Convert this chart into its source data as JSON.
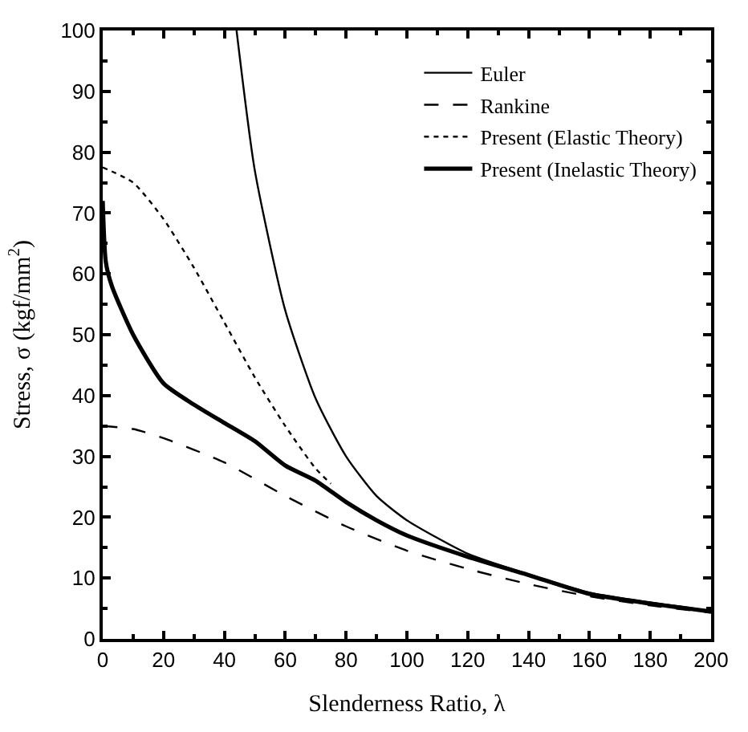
{
  "chart_data": {
    "type": "line",
    "xlabel": "Slenderness Ratio, λ",
    "ylabel": "Stress, σ (kgf/mm$^{2}$)",
    "xlim": [
      0,
      200
    ],
    "xticks": [
      0,
      20,
      40,
      60,
      80,
      100,
      120,
      140,
      160,
      180,
      200
    ],
    "ylim": [
      0,
      100
    ],
    "yticks": [
      0,
      10,
      20,
      30,
      40,
      50,
      60,
      70,
      80,
      90,
      100
    ],
    "legend": "top right",
    "marker": "none",
    "series": [
      {
        "name": "Euler",
        "color": "#000000",
        "line_style": "solid",
        "x": [
          44,
          50,
          60,
          70,
          80,
          90,
          100,
          120,
          140,
          160,
          180,
          200
        ],
        "values": [
          100,
          77,
          54,
          39.5,
          30,
          23.5,
          19.5,
          14,
          10.6,
          7.6,
          6,
          4.6
        ]
      },
      {
        "name": "Rankine",
        "color": "#000000",
        "line_style": "dashed",
        "x": [
          0,
          10,
          20,
          40,
          60,
          80,
          100,
          120,
          140,
          160,
          180,
          200
        ],
        "values": [
          35,
          34.5,
          33,
          29,
          23.5,
          18.5,
          14.5,
          11.5,
          9,
          7,
          5.5,
          4.3
        ]
      },
      {
        "name": "Present (Elastic Theory)",
        "color": "#000000",
        "line_style": "dotted",
        "x": [
          0,
          10,
          20,
          30,
          40,
          50,
          60,
          70,
          75
        ],
        "values": [
          77.5,
          75,
          69,
          61,
          52,
          43,
          35,
          28,
          25.5
        ]
      },
      {
        "name": "Present (Inelastic Theory)",
        "color": "#000000",
        "line_style": "solid",
        "x": [
          0,
          1,
          3,
          10,
          20,
          30,
          40,
          50,
          60,
          70,
          80,
          90,
          100,
          120,
          140,
          160,
          180,
          200
        ],
        "values": [
          72,
          62,
          58,
          50,
          42,
          38.5,
          35.5,
          32.5,
          28.5,
          26,
          22.5,
          19.5,
          17,
          13.5,
          10.5,
          7.4,
          5.8,
          4.5
        ]
      }
    ]
  }
}
